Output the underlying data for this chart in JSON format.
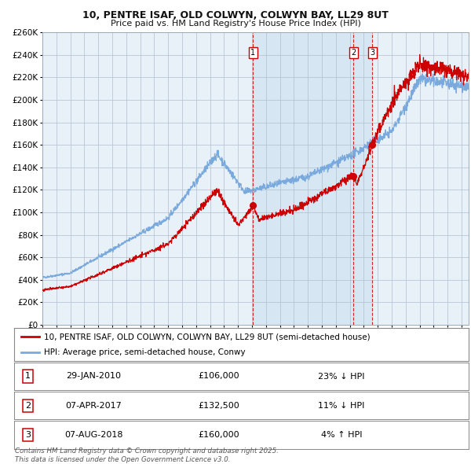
{
  "title": "10, PENTRE ISAF, OLD COLWYN, COLWYN BAY, LL29 8UT",
  "subtitle": "Price paid vs. HM Land Registry's House Price Index (HPI)",
  "property_label": "10, PENTRE ISAF, OLD COLWYN, COLWYN BAY, LL29 8UT (semi-detached house)",
  "hpi_label": "HPI: Average price, semi-detached house, Conwy",
  "property_color": "#cc0000",
  "hpi_color": "#7aaadd",
  "plot_bg": "#e8f0f8",
  "ylim": [
    0,
    260000
  ],
  "yticks": [
    0,
    20000,
    40000,
    60000,
    80000,
    100000,
    120000,
    140000,
    160000,
    180000,
    200000,
    220000,
    240000,
    260000
  ],
  "sales": [
    {
      "num": 1,
      "date": "2010-01-29",
      "price": 106000,
      "label": "29-JAN-2010",
      "pct": "23%",
      "dir": "↓",
      "x_year": 2010.08
    },
    {
      "num": 2,
      "date": "2017-04-07",
      "price": 132500,
      "label": "07-APR-2017",
      "pct": "11%",
      "dir": "↓",
      "x_year": 2017.27
    },
    {
      "num": 3,
      "date": "2018-08-07",
      "price": 160000,
      "label": "07-AUG-2018",
      "pct": "4%",
      "dir": "↑",
      "x_year": 2018.6
    }
  ],
  "footnote": "Contains HM Land Registry data © Crown copyright and database right 2025.\nThis data is licensed under the Open Government Licence v3.0.",
  "xmin": 1995.0,
  "xmax": 2025.5
}
